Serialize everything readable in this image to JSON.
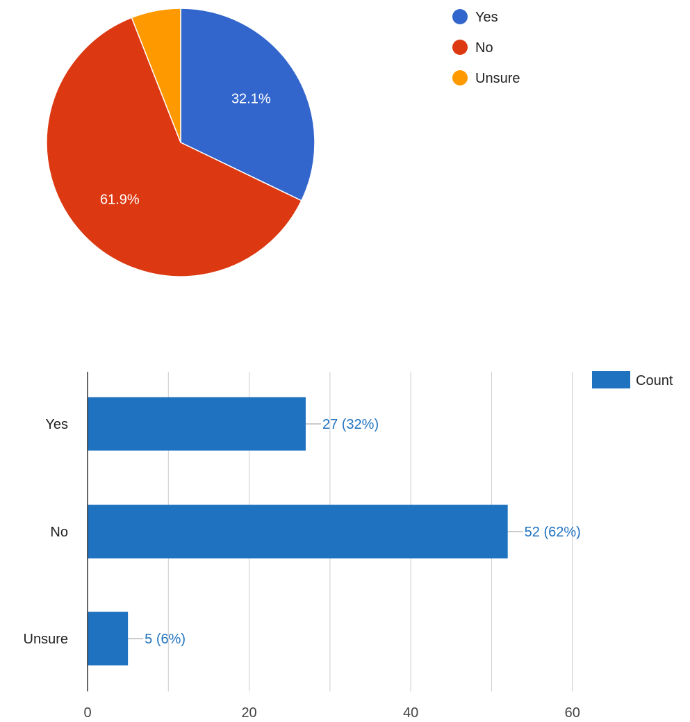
{
  "chart_data": [
    {
      "type": "pie",
      "title": "",
      "slices": [
        {
          "label": "Yes",
          "value": 27,
          "pct_label": "32.1%",
          "color": "#3366cc"
        },
        {
          "label": "No",
          "value": 52,
          "pct_label": "61.9%",
          "color": "#dc3912"
        },
        {
          "label": "Unsure",
          "value": 5,
          "pct_label": "",
          "color": "#ff9900"
        }
      ],
      "legend_position": "right"
    },
    {
      "type": "bar",
      "orientation": "horizontal",
      "title": "",
      "xlabel": "",
      "ylabel": "",
      "categories": [
        "Yes",
        "No",
        "Unsure"
      ],
      "series": [
        {
          "name": "Count",
          "values": [
            27,
            52,
            5
          ],
          "color": "#1f72bf",
          "labels": [
            "27 (32%)",
            "52 (62%)",
            "5 (6%)"
          ]
        }
      ],
      "xlim": [
        0,
        70
      ],
      "x_ticks": [
        0,
        20,
        40,
        60
      ],
      "grid": true,
      "legend_position": "top-right"
    }
  ]
}
